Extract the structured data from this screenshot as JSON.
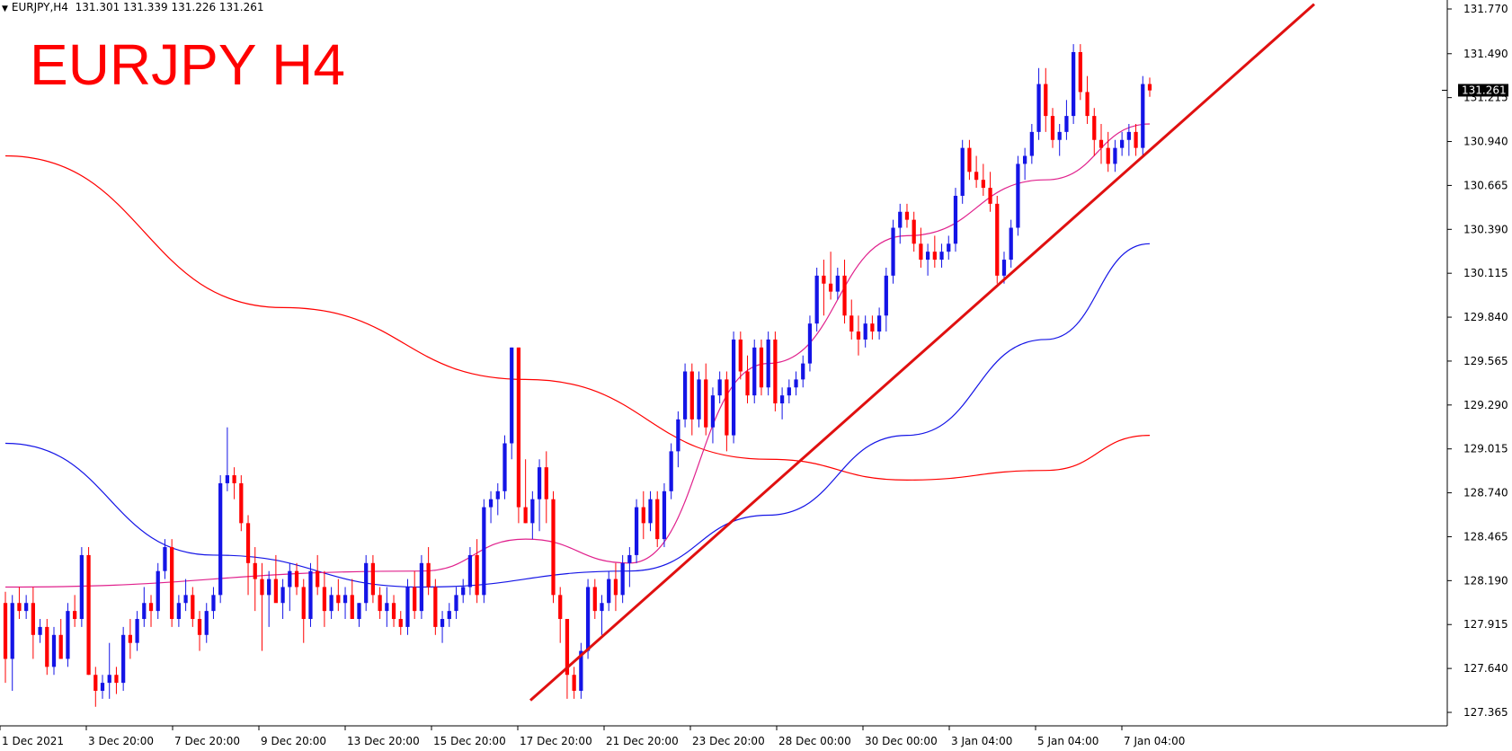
{
  "header": {
    "symbol": "EURJPY,H4",
    "quote": "131.301 131.339 131.226 131.261"
  },
  "title": "EURJPY H4",
  "chart_data": {
    "type": "candlestick",
    "symbol": "EURJPY",
    "timeframe": "H4",
    "ylim": [
      127.23,
      131.85
    ],
    "y_ticks": [
      "131.770",
      "131.490",
      "131.215",
      "130.940",
      "130.665",
      "130.390",
      "130.115",
      "129.840",
      "129.565",
      "129.290",
      "129.015",
      "128.740",
      "128.465",
      "128.190",
      "127.915",
      "127.640",
      "127.365"
    ],
    "x_ticks": [
      "1 Dec 2021",
      "3 Dec 20:00",
      "7 Dec 20:00",
      "9 Dec 20:00",
      "13 Dec 20:00",
      "15 Dec 20:00",
      "17 Dec 20:00",
      "21 Dec 20:00",
      "23 Dec 20:00",
      "28 Dec 00:00",
      "30 Dec 00:00",
      "3 Jan 04:00",
      "5 Jan 04:00",
      "7 Jan 04:00"
    ],
    "current_price": "131.261",
    "candles_ohlc": [
      [
        128.05,
        128.12,
        127.55,
        127.7
      ],
      [
        127.7,
        128.1,
        127.5,
        128.05
      ],
      [
        128.05,
        128.15,
        127.95,
        128.0
      ],
      [
        128.0,
        128.1,
        127.95,
        128.05
      ],
      [
        128.05,
        128.15,
        127.7,
        127.85
      ],
      [
        127.85,
        127.95,
        127.8,
        127.9
      ],
      [
        127.9,
        127.95,
        127.6,
        127.65
      ],
      [
        127.65,
        127.9,
        127.6,
        127.85
      ],
      [
        127.85,
        127.95,
        127.8,
        127.7
      ],
      [
        127.7,
        128.05,
        127.65,
        128.0
      ],
      [
        128.0,
        128.1,
        127.9,
        127.95
      ],
      [
        127.95,
        128.4,
        127.9,
        128.35
      ],
      [
        128.35,
        128.4,
        127.6,
        127.6
      ],
      [
        127.6,
        127.65,
        127.4,
        127.5
      ],
      [
        127.5,
        127.6,
        127.45,
        127.55
      ],
      [
        127.55,
        127.8,
        127.45,
        127.6
      ],
      [
        127.6,
        127.65,
        127.48,
        127.55
      ],
      [
        127.55,
        127.9,
        127.5,
        127.85
      ],
      [
        127.85,
        127.95,
        127.7,
        127.8
      ],
      [
        127.8,
        128.0,
        127.75,
        127.95
      ],
      [
        127.95,
        128.15,
        127.9,
        128.05
      ],
      [
        128.05,
        128.1,
        127.9,
        128.0
      ],
      [
        128.0,
        128.3,
        127.95,
        128.25
      ],
      [
        128.25,
        128.45,
        128.2,
        128.4
      ],
      [
        128.4,
        128.45,
        127.9,
        127.95
      ],
      [
        127.95,
        128.1,
        127.9,
        128.05
      ],
      [
        128.05,
        128.2,
        128.0,
        128.1
      ],
      [
        128.1,
        128.15,
        127.9,
        127.95
      ],
      [
        127.95,
        128.0,
        127.75,
        127.85
      ],
      [
        127.85,
        128.05,
        127.8,
        128.0
      ],
      [
        128.0,
        128.15,
        127.95,
        128.1
      ],
      [
        128.1,
        128.85,
        128.05,
        128.8
      ],
      [
        128.8,
        129.15,
        128.75,
        128.85
      ],
      [
        128.85,
        128.9,
        128.7,
        128.8
      ],
      [
        128.8,
        128.85,
        128.5,
        128.55
      ],
      [
        128.55,
        128.6,
        128.1,
        128.3
      ],
      [
        128.3,
        128.4,
        128.0,
        128.2
      ],
      [
        128.2,
        128.3,
        127.75,
        128.1
      ],
      [
        128.1,
        128.25,
        127.9,
        128.2
      ],
      [
        128.2,
        128.35,
        128.1,
        128.05
      ],
      [
        128.05,
        128.2,
        127.95,
        128.15
      ],
      [
        128.15,
        128.3,
        128.0,
        128.25
      ],
      [
        128.25,
        128.3,
        128.1,
        128.15
      ],
      [
        128.15,
        128.2,
        127.8,
        127.95
      ],
      [
        127.95,
        128.3,
        127.9,
        128.25
      ],
      [
        128.25,
        128.35,
        128.1,
        128.15
      ],
      [
        128.15,
        128.25,
        127.9,
        128.0
      ],
      [
        128.0,
        128.15,
        127.95,
        128.1
      ],
      [
        128.1,
        128.2,
        128.0,
        128.05
      ],
      [
        128.05,
        128.15,
        127.95,
        128.1
      ],
      [
        128.1,
        128.2,
        128.0,
        127.95
      ],
      [
        127.95,
        128.05,
        127.9,
        128.05
      ],
      [
        128.05,
        128.35,
        128.0,
        128.3
      ],
      [
        128.3,
        128.35,
        128.05,
        128.1
      ],
      [
        128.1,
        128.15,
        127.95,
        128.0
      ],
      [
        128.0,
        128.15,
        127.9,
        128.05
      ],
      [
        128.05,
        128.1,
        127.9,
        127.95
      ],
      [
        127.95,
        128.0,
        127.85,
        127.9
      ],
      [
        127.9,
        128.2,
        127.85,
        128.15
      ],
      [
        128.15,
        128.25,
        127.95,
        128.0
      ],
      [
        128.0,
        128.35,
        127.95,
        128.3
      ],
      [
        128.3,
        128.4,
        128.1,
        128.15
      ],
      [
        128.15,
        128.2,
        127.85,
        127.9
      ],
      [
        127.9,
        128.0,
        127.8,
        127.95
      ],
      [
        127.95,
        128.05,
        127.9,
        128.0
      ],
      [
        128.0,
        128.15,
        127.95,
        128.1
      ],
      [
        128.1,
        128.2,
        128.05,
        128.15
      ],
      [
        128.15,
        128.4,
        128.1,
        128.35
      ],
      [
        128.35,
        128.45,
        128.05,
        128.1
      ],
      [
        128.1,
        128.7,
        128.05,
        128.65
      ],
      [
        128.65,
        128.75,
        128.55,
        128.7
      ],
      [
        128.7,
        128.8,
        128.6,
        128.75
      ],
      [
        128.75,
        129.1,
        128.7,
        129.05
      ],
      [
        129.05,
        129.65,
        128.95,
        129.65
      ],
      [
        129.65,
        129.65,
        128.55,
        128.65
      ],
      [
        128.65,
        128.95,
        128.55,
        128.55
      ],
      [
        128.55,
        128.75,
        128.45,
        128.7
      ],
      [
        128.7,
        128.95,
        128.5,
        128.9
      ],
      [
        128.9,
        129.0,
        128.55,
        128.7
      ],
      [
        128.7,
        128.75,
        128.05,
        128.1
      ],
      [
        128.1,
        128.15,
        127.8,
        127.95
      ],
      [
        127.95,
        127.95,
        127.45,
        127.6
      ],
      [
        127.6,
        127.65,
        127.45,
        127.5
      ],
      [
        127.5,
        127.8,
        127.45,
        127.75
      ],
      [
        127.75,
        128.2,
        127.7,
        128.15
      ],
      [
        128.15,
        128.2,
        127.95,
        128.0
      ],
      [
        128.0,
        128.1,
        127.85,
        128.05
      ],
      [
        128.05,
        128.25,
        128.0,
        128.2
      ],
      [
        128.2,
        128.3,
        128.0,
        128.1
      ],
      [
        128.1,
        128.35,
        128.05,
        128.3
      ],
      [
        128.3,
        128.4,
        128.15,
        128.35
      ],
      [
        128.35,
        128.7,
        128.3,
        128.65
      ],
      [
        128.65,
        128.75,
        128.45,
        128.55
      ],
      [
        128.55,
        128.75,
        128.5,
        128.7
      ],
      [
        128.7,
        128.75,
        128.4,
        128.45
      ],
      [
        128.45,
        128.8,
        128.4,
        128.75
      ],
      [
        128.75,
        129.05,
        128.7,
        129.0
      ],
      [
        129.0,
        129.25,
        128.9,
        129.2
      ],
      [
        129.2,
        129.55,
        129.15,
        129.5
      ],
      [
        129.5,
        129.55,
        129.1,
        129.2
      ],
      [
        129.2,
        129.5,
        129.15,
        129.45
      ],
      [
        129.45,
        129.55,
        129.1,
        129.15
      ],
      [
        129.15,
        129.4,
        129.05,
        129.35
      ],
      [
        129.35,
        129.5,
        129.3,
        129.45
      ],
      [
        129.45,
        129.5,
        129.0,
        129.1
      ],
      [
        129.1,
        129.75,
        129.05,
        129.7
      ],
      [
        129.7,
        129.75,
        129.45,
        129.5
      ],
      [
        129.5,
        129.6,
        129.3,
        129.35
      ],
      [
        129.35,
        129.7,
        129.3,
        129.65
      ],
      [
        129.65,
        129.7,
        129.35,
        129.4
      ],
      [
        129.4,
        129.75,
        129.35,
        129.7
      ],
      [
        129.7,
        129.75,
        129.25,
        129.3
      ],
      [
        129.3,
        129.4,
        129.2,
        129.35
      ],
      [
        129.35,
        129.45,
        129.3,
        129.4
      ],
      [
        129.4,
        129.5,
        129.35,
        129.45
      ],
      [
        129.45,
        129.6,
        129.4,
        129.55
      ],
      [
        129.55,
        129.85,
        129.5,
        129.8
      ],
      [
        129.8,
        130.15,
        129.75,
        130.1
      ],
      [
        130.1,
        130.2,
        129.85,
        130.05
      ],
      [
        130.05,
        130.25,
        129.95,
        130.0
      ],
      [
        130.0,
        130.15,
        129.95,
        130.1
      ],
      [
        130.1,
        130.2,
        129.8,
        129.85
      ],
      [
        129.85,
        129.95,
        129.7,
        129.75
      ],
      [
        129.75,
        129.85,
        129.6,
        129.7
      ],
      [
        129.7,
        129.85,
        129.65,
        129.8
      ],
      [
        129.8,
        129.85,
        129.7,
        129.75
      ],
      [
        129.75,
        129.9,
        129.7,
        129.85
      ],
      [
        129.85,
        130.15,
        129.75,
        130.1
      ],
      [
        130.1,
        130.45,
        130.05,
        130.4
      ],
      [
        130.4,
        130.55,
        130.3,
        130.5
      ],
      [
        130.5,
        130.55,
        130.4,
        130.45
      ],
      [
        130.45,
        130.5,
        130.25,
        130.3
      ],
      [
        130.3,
        130.4,
        130.15,
        130.2
      ],
      [
        130.2,
        130.3,
        130.1,
        130.25
      ],
      [
        130.25,
        130.35,
        130.15,
        130.2
      ],
      [
        130.2,
        130.3,
        130.15,
        130.25
      ],
      [
        130.25,
        130.35,
        130.2,
        130.3
      ],
      [
        130.3,
        130.65,
        130.25,
        130.6
      ],
      [
        130.6,
        130.95,
        130.55,
        130.9
      ],
      [
        130.9,
        130.95,
        130.7,
        130.75
      ],
      [
        130.75,
        130.85,
        130.65,
        130.7
      ],
      [
        130.7,
        130.8,
        130.6,
        130.65
      ],
      [
        130.65,
        130.75,
        130.5,
        130.55
      ],
      [
        130.55,
        130.6,
        130.05,
        130.1
      ],
      [
        130.1,
        130.25,
        130.05,
        130.2
      ],
      [
        130.2,
        130.45,
        130.15,
        130.4
      ],
      [
        130.4,
        130.85,
        130.35,
        130.8
      ],
      [
        130.8,
        130.9,
        130.7,
        130.85
      ],
      [
        130.85,
        131.05,
        130.8,
        131.0
      ],
      [
        131.0,
        131.4,
        130.95,
        131.3
      ],
      [
        131.3,
        131.4,
        131.0,
        131.1
      ],
      [
        131.1,
        131.15,
        130.9,
        130.95
      ],
      [
        130.95,
        131.05,
        130.85,
        131.0
      ],
      [
        131.0,
        131.2,
        130.95,
        131.1
      ],
      [
        131.1,
        131.55,
        131.05,
        131.5
      ],
      [
        131.5,
        131.55,
        131.2,
        131.25
      ],
      [
        131.25,
        131.35,
        131.05,
        131.1
      ],
      [
        131.1,
        131.15,
        130.85,
        130.95
      ],
      [
        130.95,
        131.05,
        130.8,
        130.9
      ],
      [
        130.9,
        131.0,
        130.75,
        130.8
      ],
      [
        130.8,
        130.95,
        130.75,
        130.9
      ],
      [
        130.9,
        131.0,
        130.85,
        130.95
      ],
      [
        130.95,
        131.05,
        130.85,
        131.0
      ],
      [
        131.0,
        131.05,
        130.85,
        130.9
      ],
      [
        130.9,
        131.35,
        130.85,
        131.3
      ],
      [
        131.3,
        131.34,
        131.22,
        131.26
      ]
    ],
    "ma_fast": [
      [
        0,
        128.15
      ],
      [
        60,
        128.25
      ],
      [
        75,
        128.45
      ],
      [
        90,
        128.3
      ],
      [
        110,
        129.55
      ],
      [
        130,
        130.35
      ],
      [
        150,
        130.7
      ],
      [
        165,
        131.05
      ]
    ],
    "ma_mid": [
      [
        0,
        129.05
      ],
      [
        30,
        128.35
      ],
      [
        60,
        128.15
      ],
      [
        90,
        128.25
      ],
      [
        110,
        128.6
      ],
      [
        130,
        129.1
      ],
      [
        150,
        129.7
      ],
      [
        165,
        130.3
      ]
    ],
    "ma_slow": [
      [
        0,
        130.85
      ],
      [
        40,
        129.9
      ],
      [
        75,
        129.45
      ],
      [
        110,
        128.95
      ],
      [
        130,
        128.82
      ],
      [
        150,
        128.88
      ],
      [
        165,
        129.1
      ]
    ],
    "trendline": [
      [
        127.44
      ],
      [
        131.8
      ]
    ],
    "colors": {
      "bull": "#1414e6",
      "bear": "#ff0000",
      "ma_fast": "#e0208c",
      "ma_mid": "#1414e6",
      "ma_slow": "#ff0000",
      "trendline": "#e01010",
      "title": "#ff0000"
    }
  }
}
